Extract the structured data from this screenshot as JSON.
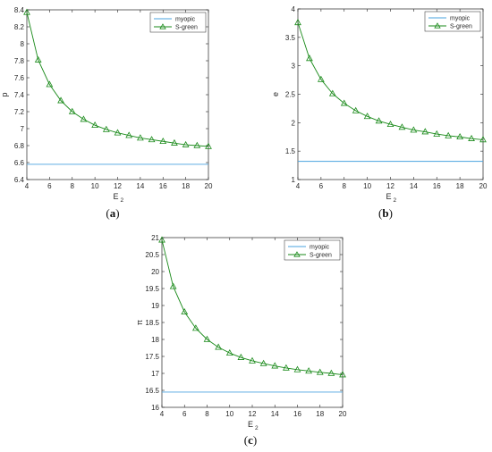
{
  "chart_data": [
    {
      "id": "a",
      "type": "line",
      "caption_letter": "a",
      "xlabel_main": "E",
      "xlabel_sub": "2",
      "ylabel": "p",
      "xlim": [
        4,
        20
      ],
      "ylim": [
        6.4,
        8.4
      ],
      "xticks": [
        4,
        6,
        8,
        10,
        12,
        14,
        16,
        18,
        20
      ],
      "yticks": [
        6.4,
        6.6,
        6.8,
        7,
        7.2,
        7.4,
        7.6,
        7.8,
        8,
        8.2,
        8.4
      ],
      "ytick_labels": [
        "6.4",
        "6.6",
        "6.8",
        "7",
        "7.2",
        "7.4",
        "7.6",
        "7.8",
        "8",
        "8.2",
        "8.4"
      ],
      "grid": false,
      "legend_position": "top-right",
      "x": [
        4,
        5,
        6,
        7,
        8,
        9,
        10,
        11,
        12,
        13,
        14,
        15,
        16,
        17,
        18,
        19,
        20
      ],
      "series": [
        {
          "name": "myopic",
          "color": "#4aa3df",
          "marker": "none",
          "values": [
            6.58,
            6.58,
            6.58,
            6.58,
            6.58,
            6.58,
            6.58,
            6.58,
            6.58,
            6.58,
            6.58,
            6.58,
            6.58,
            6.58,
            6.58,
            6.58,
            6.58
          ]
        },
        {
          "name": "S-green",
          "color": "#1a8a1a",
          "marker": "triangle",
          "values": [
            8.37,
            7.81,
            7.52,
            7.33,
            7.2,
            7.11,
            7.04,
            6.99,
            6.95,
            6.92,
            6.89,
            6.87,
            6.85,
            6.83,
            6.81,
            6.8,
            6.79
          ]
        }
      ]
    },
    {
      "id": "b",
      "type": "line",
      "caption_letter": "b",
      "xlabel_main": "E",
      "xlabel_sub": "2",
      "ylabel": "e",
      "xlim": [
        4,
        20
      ],
      "ylim": [
        1,
        4
      ],
      "xticks": [
        4,
        6,
        8,
        10,
        12,
        14,
        16,
        18,
        20
      ],
      "yticks": [
        1,
        1.5,
        2,
        2.5,
        3,
        3.5,
        4
      ],
      "ytick_labels": [
        "1",
        "1.5",
        "2",
        "2.5",
        "3",
        "3.5",
        "4"
      ],
      "grid": false,
      "legend_position": "top-right",
      "x": [
        4,
        5,
        6,
        7,
        8,
        9,
        10,
        11,
        12,
        13,
        14,
        15,
        16,
        17,
        18,
        19,
        20
      ],
      "series": [
        {
          "name": "myopic",
          "color": "#4aa3df",
          "marker": "none",
          "values": [
            1.32,
            1.32,
            1.32,
            1.32,
            1.32,
            1.32,
            1.32,
            1.32,
            1.32,
            1.32,
            1.32,
            1.32,
            1.32,
            1.32,
            1.32,
            1.32,
            1.32
          ]
        },
        {
          "name": "S-green",
          "color": "#1a8a1a",
          "marker": "triangle",
          "values": [
            3.76,
            3.13,
            2.76,
            2.51,
            2.34,
            2.21,
            2.11,
            2.03,
            1.97,
            1.92,
            1.87,
            1.84,
            1.8,
            1.77,
            1.75,
            1.72,
            1.7
          ]
        }
      ]
    },
    {
      "id": "c",
      "type": "line",
      "caption_letter": "c",
      "xlabel_main": "E",
      "xlabel_sub": "2",
      "ylabel": "π",
      "xlim": [
        4,
        20
      ],
      "ylim": [
        16,
        21
      ],
      "xticks": [
        4,
        6,
        8,
        10,
        12,
        14,
        16,
        18,
        20
      ],
      "yticks": [
        16,
        16.5,
        17,
        17.5,
        18,
        18.5,
        19,
        19.5,
        20,
        20.5,
        21
      ],
      "ytick_labels": [
        "16",
        "16.5",
        "17",
        "17.5",
        "18",
        "18.5",
        "19",
        "19.5",
        "20",
        "20.5",
        "21"
      ],
      "grid": false,
      "legend_position": "top-right",
      "x": [
        4,
        5,
        6,
        7,
        8,
        9,
        10,
        11,
        12,
        13,
        14,
        15,
        16,
        17,
        18,
        19,
        20
      ],
      "series": [
        {
          "name": "myopic",
          "color": "#4aa3df",
          "marker": "none",
          "values": [
            16.45,
            16.45,
            16.45,
            16.45,
            16.45,
            16.45,
            16.45,
            16.45,
            16.45,
            16.45,
            16.45,
            16.45,
            16.45,
            16.45,
            16.45,
            16.45,
            16.45
          ]
        },
        {
          "name": "S-green",
          "color": "#1a8a1a",
          "marker": "triangle",
          "values": [
            20.93,
            19.56,
            18.81,
            18.33,
            18.0,
            17.77,
            17.6,
            17.47,
            17.37,
            17.29,
            17.22,
            17.16,
            17.11,
            17.07,
            17.03,
            17.0,
            16.96
          ]
        }
      ]
    }
  ]
}
